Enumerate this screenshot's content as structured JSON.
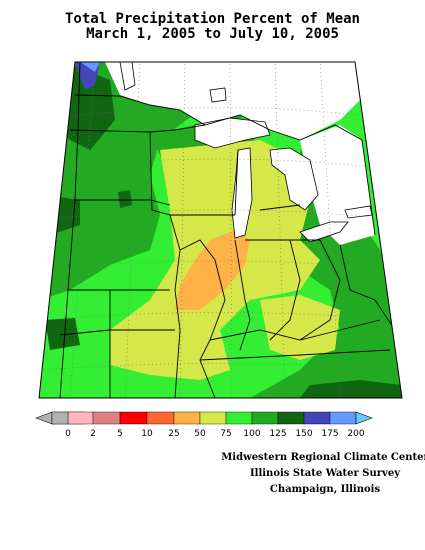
{
  "title_line1": "Total Precipitation Percent of Mean",
  "title_line2": "March 1, 2005 to July 10, 2005",
  "colors": {
    "pct_0": "#b0b0b0",
    "pct_2": "#ffb6c1",
    "pct_5": "#e08080",
    "pct_10": "#ff0000",
    "pct_25": "#ff6633",
    "pct_50": "#ffb347",
    "pct_75": "#d4e84a",
    "pct_100": "#33ee33",
    "pct_125": "#22aa22",
    "pct_150": "#116611",
    "pct_175": "#4444bb",
    "pct_200": "#6699ff",
    "pct_over": "#66ccff",
    "boundary": "#000000",
    "grid": "#777777"
  },
  "legend": {
    "labels": [
      "0",
      "2",
      "5",
      "10",
      "25",
      "50",
      "75",
      "100",
      "125",
      "150",
      "175",
      "200"
    ]
  },
  "credits": {
    "line1": "Midwestern Regional Climate Center",
    "line2": "Illinois State Water Survey",
    "line3": "Champaign, Illinois"
  }
}
